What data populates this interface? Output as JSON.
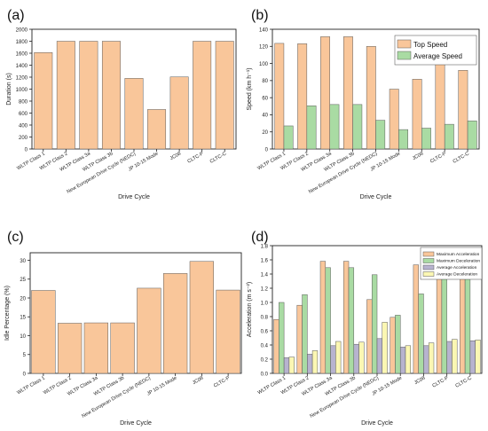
{
  "colors": {
    "bar_orange": "#f9c69a",
    "bar_green": "#a9dba3",
    "bar_gray": "#b7b3cf",
    "bar_yellow": "#fbf7b3",
    "bar_stroke": "#5a5a5a",
    "axis": "#222222"
  },
  "chart_data": [
    {
      "panel": "(a)",
      "type": "bar",
      "xlabel": "Drive Cycle",
      "ylabel": "Duration (s)",
      "ylim": [
        0,
        2000
      ],
      "yticks": [
        0,
        200,
        400,
        600,
        800,
        1000,
        1200,
        1400,
        1600,
        1800,
        2000
      ],
      "categories": [
        "WLTP Class 1",
        "WLTP Class 2",
        "WLTP Class 3a",
        "WLTP Class 3b",
        "New European Drive Cycle (NEDC)",
        "JP 10-15 Mode",
        "JC08",
        "CLTC-P",
        "CLTC-C"
      ],
      "series": [
        {
          "values": [
            1611,
            1800,
            1800,
            1800,
            1180,
            660,
            1204,
            1800,
            1800
          ]
        }
      ]
    },
    {
      "panel": "(b)",
      "type": "bar",
      "xlabel": "Drive Cycle",
      "ylabel": "Speed (km h⁻¹)",
      "ylim": [
        0,
        140
      ],
      "yticks": [
        0,
        20,
        40,
        60,
        80,
        100,
        120,
        140
      ],
      "legend_position": "top-right",
      "categories": [
        "WLTP Class 1",
        "WLTP Class 2",
        "WLTP Class 3a",
        "WLTP Class 3b",
        "New European Drive Cycle (NEDC)",
        "JP 10-15 Mode",
        "JC08",
        "CLTC-P",
        "CLTC-C"
      ],
      "series": [
        {
          "name": "Top Speed",
          "values": [
            123.5,
            123.1,
            131.3,
            131.3,
            120,
            70,
            81.6,
            114,
            92
          ]
        },
        {
          "name": "Average Speed",
          "values": [
            27,
            50.5,
            52,
            52,
            33.6,
            22.7,
            24.4,
            28.9,
            32.8
          ]
        }
      ]
    },
    {
      "panel": "(c)",
      "type": "bar",
      "xlabel": "Drive Cycle",
      "ylabel": "Idle Percentage (%)",
      "ylim": [
        0,
        32
      ],
      "yticks": [
        0,
        5,
        10,
        15,
        20,
        25,
        30
      ],
      "categories": [
        "WLTP Class 1",
        "WLTP Class 2",
        "WLTP Class 3a",
        "WLTP Class 3b",
        "New European Drive Cycle (NEDC)",
        "JP 10-15 Mode",
        "JC08",
        "CLTC-P"
      ],
      "series": [
        {
          "values": [
            22,
            13.3,
            13.4,
            13.4,
            22.6,
            26.5,
            29.7,
            22.1
          ]
        }
      ]
    },
    {
      "panel": "(d)",
      "type": "bar",
      "xlabel": "Drive Cycle",
      "ylabel": "Acceleration (m s⁻²)",
      "ylim": [
        0,
        1.8
      ],
      "yticks": [
        0.0,
        0.2,
        0.4,
        0.6,
        0.8,
        1.0,
        1.2,
        1.4,
        1.6,
        1.8
      ],
      "legend_position": "top-right",
      "categories": [
        "WLTP Class 1",
        "WLTP Class 2",
        "WLTP Class 3a",
        "WLTP Class 3b",
        "New European Drive Cycle (NEDC)",
        "JP 10-15 Mode",
        "JC08",
        "CLTC-P",
        "CLTC-C"
      ],
      "series": [
        {
          "name": "Maximum Acceleration",
          "values": [
            0.76,
            0.96,
            1.58,
            1.58,
            1.04,
            0.79,
            1.53,
            1.47,
            1.37
          ]
        },
        {
          "name": "Maximum Deceleration",
          "values": [
            1.0,
            1.11,
            1.49,
            1.49,
            1.39,
            0.82,
            1.12,
            1.47,
            1.37
          ]
        },
        {
          "name": "Average Acceleration",
          "values": [
            0.22,
            0.27,
            0.39,
            0.41,
            0.49,
            0.37,
            0.39,
            0.45,
            0.46
          ]
        },
        {
          "name": "Average Deceleration",
          "values": [
            0.23,
            0.32,
            0.45,
            0.44,
            0.72,
            0.39,
            0.43,
            0.48,
            0.47
          ]
        }
      ]
    }
  ]
}
